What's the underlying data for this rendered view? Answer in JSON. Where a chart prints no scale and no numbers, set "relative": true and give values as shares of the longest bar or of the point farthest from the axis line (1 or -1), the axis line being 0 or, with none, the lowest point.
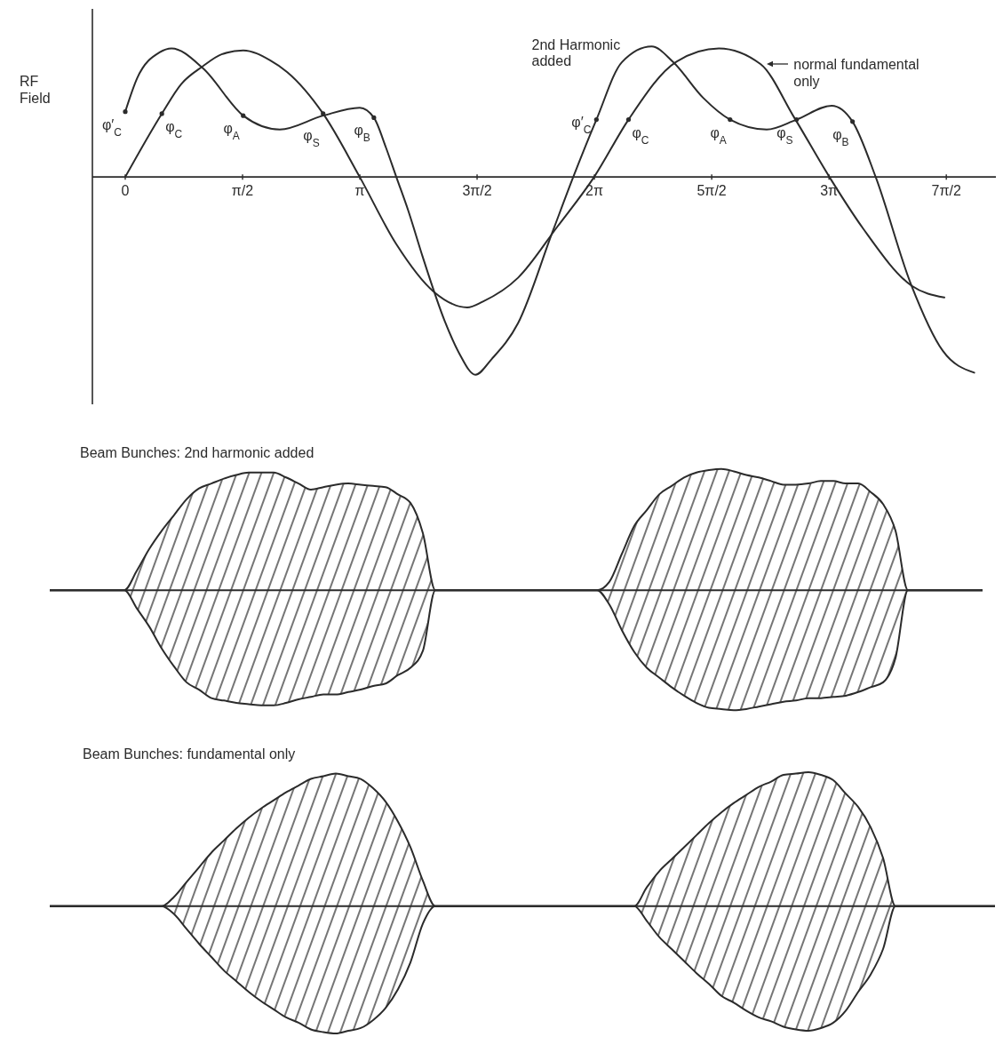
{
  "chart_data": [
    {
      "type": "line",
      "ylabel": "RF Field",
      "relative": true,
      "tick_labels": "x",
      "xlim": [
        -0.44,
        11.66
      ],
      "xticks": [
        0,
        {
          "value": 1.571,
          "label": "π/2"
        },
        {
          "value": 3.142,
          "label": "π"
        },
        {
          "value": 4.712,
          "label": "3π/2"
        },
        {
          "value": 6.283,
          "label": "2π"
        },
        {
          "value": 7.854,
          "label": "5π/2"
        },
        {
          "value": 9.425,
          "label": "3π"
        },
        {
          "value": 10.996,
          "label": "7π/2"
        }
      ],
      "series": [
        {
          "name": "2nd Harmonic added",
          "color": "#2b2b2b",
          "x": [
            0,
            0.16,
            0.46,
            0.62,
            1.04,
            1.58,
            2.07,
            2.65,
            3.14,
            3.33,
            3.49,
            3.63,
            3.79,
            3.98,
            4.28,
            4.47,
            4.69,
            4.91,
            5.26,
            5.72,
            6.0,
            6.31,
            6.65,
            7.05,
            7.34,
            7.74,
            8.1,
            8.59,
            8.99,
            9.46,
            9.74,
            10.05,
            10.52,
            10.95,
            11.37
          ],
          "values": [
            0.33,
            0.5,
            0.63,
            0.65,
            0.55,
            0.31,
            0.24,
            0.31,
            0.35,
            0.3,
            0.15,
            0,
            -0.17,
            -0.4,
            -0.73,
            -0.89,
            -1,
            -0.92,
            -0.74,
            -0.28,
            0,
            0.29,
            0.58,
            0.66,
            0.58,
            0.4,
            0.29,
            0.24,
            0.29,
            0.36,
            0.28,
            0,
            -0.54,
            -0.88,
            -0.99
          ]
        },
        {
          "name": "normal fundamental only",
          "color": "#2b2b2b",
          "x": [
            0,
            0.49,
            0.75,
            1.04,
            1.29,
            1.58,
            1.94,
            2.17,
            2.65,
            3.14,
            3.63,
            4.13,
            4.58,
            4.79,
            5.26,
            5.79,
            6.28,
            6.74,
            7.37,
            7.95,
            8.51,
            8.96,
            9.43,
            9.88,
            10.53,
            10.97
          ],
          "values": [
            0,
            0.32,
            0.47,
            0.56,
            0.62,
            0.64,
            0.59,
            0.53,
            0.32,
            0,
            -0.34,
            -0.58,
            -0.66,
            -0.63,
            -0.51,
            -0.25,
            0,
            0.29,
            0.58,
            0.65,
            0.57,
            0.3,
            0,
            -0.26,
            -0.55,
            -0.61
          ]
        }
      ],
      "annotations": [
        {
          "text": "φ′$_{C}$",
          "x": 0,
          "y": 0.33
        },
        {
          "text": "φ$_{C}$",
          "x": 0.49,
          "y": 0.32
        },
        {
          "text": "φ$_{A}$",
          "x": 1.58,
          "y": 0.31
        },
        {
          "text": "φ$_{S}$",
          "x": 2.65,
          "y": 0.32
        },
        {
          "text": "φ$_{B}$",
          "x": 3.33,
          "y": 0.3
        },
        {
          "text": "φ′$_{C}$",
          "x": 6.31,
          "y": 0.29
        },
        {
          "text": "φ$_{C}$",
          "x": 6.74,
          "y": 0.29
        },
        {
          "text": "φ$_{A}$",
          "x": 8.1,
          "y": 0.29
        },
        {
          "text": "φ$_{S}$",
          "x": 8.99,
          "y": 0.29
        },
        {
          "text": "φ$_{B}$",
          "x": 9.74,
          "y": 0.28
        }
      ]
    },
    {
      "type": "area",
      "title": "Beam Bunches: 2nd harmonic added",
      "relative": true,
      "tick_labels": false,
      "categories": [
        null,
        null,
        null,
        null,
        null,
        null,
        null,
        null,
        null,
        null,
        null,
        null,
        null,
        null,
        null,
        null,
        null,
        null,
        null,
        null,
        null,
        null,
        null,
        null,
        null,
        null,
        null,
        null,
        null,
        null,
        null,
        null,
        null,
        null,
        null,
        null,
        null,
        null,
        null,
        null,
        null,
        null,
        null,
        null,
        null,
        null,
        null,
        null,
        null,
        null,
        null,
        null,
        null,
        null,
        null,
        null,
        null,
        null,
        null,
        null,
        null,
        null,
        null,
        null,
        null,
        null,
        null,
        null,
        null,
        null,
        null,
        null,
        null,
        null,
        null,
        null
      ],
      "series": [
        {
          "color": "#2b2b2b",
          "values": [
            0,
            0,
            0,
            0,
            0,
            0,
            0,
            0.16,
            0.34,
            0.49,
            0.62,
            0.75,
            0.84,
            0.88,
            0.92,
            0.95,
            0.97,
            0.97,
            0.97,
            0.93,
            0.88,
            0.83,
            0.85,
            0.87,
            0.88,
            0.87,
            0.86,
            0.85,
            0.79,
            0.72,
            0.47,
            0,
            0,
            0,
            0,
            0,
            0,
            0,
            0,
            0,
            0,
            0,
            0,
            0,
            0,
            0.07,
            0.3,
            0.53,
            0.66,
            0.79,
            0.86,
            0.93,
            0.97,
            0.99,
            1,
            0.98,
            0.95,
            0.93,
            0.9,
            0.87,
            0.87,
            0.88,
            0.9,
            0.9,
            0.88,
            0.88,
            0.81,
            0.71,
            0.49,
            0,
            0,
            0,
            0,
            0,
            0,
            0
          ]
        },
        {
          "color": "#2b2b2b",
          "values": [
            0,
            0,
            0,
            0,
            0,
            0,
            0,
            -0.15,
            -0.3,
            -0.48,
            -0.63,
            -0.76,
            -0.82,
            -0.89,
            -0.91,
            -0.93,
            -0.94,
            -0.95,
            -0.95,
            -0.93,
            -0.9,
            -0.88,
            -0.86,
            -0.86,
            -0.84,
            -0.82,
            -0.79,
            -0.77,
            -0.7,
            -0.64,
            -0.5,
            0,
            0,
            0,
            0,
            0,
            0,
            0,
            0,
            0,
            0,
            0,
            0,
            0,
            0,
            -0.12,
            -0.33,
            -0.51,
            -0.64,
            -0.72,
            -0.8,
            -0.87,
            -0.93,
            -0.97,
            -0.98,
            -0.99,
            -0.98,
            -0.96,
            -0.94,
            -0.92,
            -0.91,
            -0.89,
            -0.89,
            -0.88,
            -0.87,
            -0.84,
            -0.8,
            -0.76,
            -0.56,
            0,
            0,
            0,
            0,
            0,
            0,
            0
          ]
        }
      ]
    },
    {
      "type": "area",
      "title": "Beam Bunches: fundamental only",
      "relative": true,
      "tick_labels": false,
      "categories": [
        null,
        null,
        null,
        null,
        null,
        null,
        null,
        null,
        null,
        null,
        null,
        null,
        null,
        null,
        null,
        null,
        null,
        null,
        null,
        null,
        null,
        null,
        null,
        null,
        null,
        null,
        null,
        null,
        null,
        null,
        null,
        null,
        null,
        null,
        null,
        null,
        null,
        null,
        null,
        null,
        null,
        null,
        null,
        null,
        null,
        null,
        null,
        null,
        null,
        null,
        null,
        null,
        null,
        null,
        null,
        null,
        null,
        null,
        null,
        null,
        null,
        null,
        null,
        null,
        null,
        null,
        null,
        null,
        null,
        null,
        null,
        null,
        null,
        null,
        null,
        null,
        null
      ],
      "series": [
        {
          "color": "#2b2b2b",
          "values": [
            0,
            0,
            0,
            0,
            0,
            0,
            0,
            0,
            0,
            0,
            0.07,
            0.18,
            0.29,
            0.4,
            0.49,
            0.58,
            0.66,
            0.73,
            0.79,
            0.85,
            0.9,
            0.95,
            0.97,
            0.99,
            0.97,
            0.95,
            0.88,
            0.78,
            0.63,
            0.44,
            0.19,
            0,
            0,
            0,
            0,
            0,
            0,
            0,
            0,
            0,
            0,
            0,
            0,
            0,
            0,
            0,
            0,
            0,
            0.14,
            0.26,
            0.35,
            0.44,
            0.53,
            0.62,
            0.7,
            0.77,
            0.83,
            0.89,
            0.93,
            0.98,
            0.99,
            1,
            0.98,
            0.94,
            0.84,
            0.74,
            0.59,
            0.36,
            0,
            0,
            0,
            0,
            0,
            0,
            0,
            0,
            0
          ]
        },
        {
          "color": "#2b2b2b",
          "values": [
            0,
            0,
            0,
            0,
            0,
            0,
            0,
            0,
            0,
            0,
            -0.06,
            -0.17,
            -0.28,
            -0.38,
            -0.48,
            -0.56,
            -0.64,
            -0.71,
            -0.77,
            -0.83,
            -0.87,
            -0.92,
            -0.94,
            -0.95,
            -0.93,
            -0.91,
            -0.85,
            -0.76,
            -0.62,
            -0.42,
            -0.13,
            0,
            0,
            0,
            0,
            0,
            0,
            0,
            0,
            0,
            0,
            0,
            0,
            0,
            0,
            0,
            0,
            0,
            -0.11,
            -0.23,
            -0.32,
            -0.41,
            -0.5,
            -0.58,
            -0.67,
            -0.72,
            -0.78,
            -0.83,
            -0.86,
            -0.9,
            -0.92,
            -0.93,
            -0.91,
            -0.87,
            -0.78,
            -0.64,
            -0.51,
            -0.32,
            0,
            0,
            0,
            0,
            0,
            0,
            0,
            0,
            0
          ]
        }
      ]
    }
  ]
}
